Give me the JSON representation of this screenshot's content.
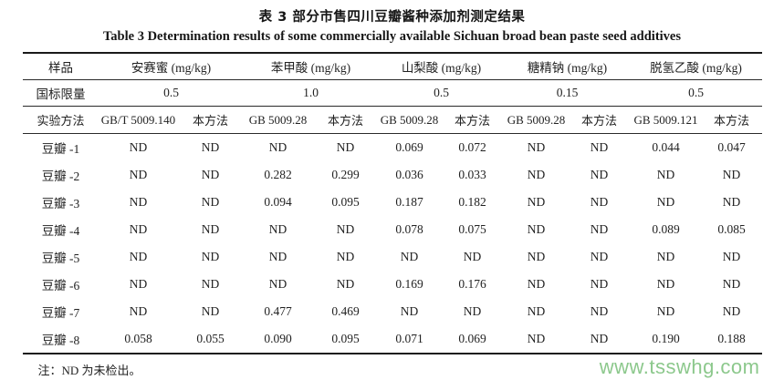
{
  "title_cn": "表 3  部分市售四川豆瓣酱种添加剂测定结果",
  "title_en": "Table 3  Determination results of some commercially available Sichuan broad bean paste seed additives",
  "table": {
    "col_sample": "样品",
    "row_limit_label": "国标限量",
    "row_method_label": "实验方法",
    "additives": [
      {
        "name": "安赛蜜 (mg/kg)",
        "limit": "0.5",
        "std_method": "GB/T 5009.140",
        "our_method": "本方法"
      },
      {
        "name": "苯甲酸 (mg/kg)",
        "limit": "1.0",
        "std_method": "GB 5009.28",
        "our_method": "本方法"
      },
      {
        "name": "山梨酸 (mg/kg)",
        "limit": "0.5",
        "std_method": "GB 5009.28",
        "our_method": "本方法"
      },
      {
        "name": "糖精钠 (mg/kg)",
        "limit": "0.15",
        "std_method": "GB 5009.28",
        "our_method": "本方法"
      },
      {
        "name": "脱氢乙酸 (mg/kg)",
        "limit": "0.5",
        "std_method": "GB 5009.121",
        "our_method": "本方法"
      }
    ],
    "rows": [
      {
        "sample": "豆瓣 -1",
        "values": [
          "ND",
          "ND",
          "ND",
          "ND",
          "0.069",
          "0.072",
          "ND",
          "ND",
          "0.044",
          "0.047"
        ]
      },
      {
        "sample": "豆瓣 -2",
        "values": [
          "ND",
          "ND",
          "0.282",
          "0.299",
          "0.036",
          "0.033",
          "ND",
          "ND",
          "ND",
          "ND"
        ]
      },
      {
        "sample": "豆瓣 -3",
        "values": [
          "ND",
          "ND",
          "0.094",
          "0.095",
          "0.187",
          "0.182",
          "ND",
          "ND",
          "ND",
          "ND"
        ]
      },
      {
        "sample": "豆瓣 -4",
        "values": [
          "ND",
          "ND",
          "ND",
          "ND",
          "0.078",
          "0.075",
          "ND",
          "ND",
          "0.089",
          "0.085"
        ]
      },
      {
        "sample": "豆瓣 -5",
        "values": [
          "ND",
          "ND",
          "ND",
          "ND",
          "ND",
          "ND",
          "ND",
          "ND",
          "ND",
          "ND"
        ]
      },
      {
        "sample": "豆瓣 -6",
        "values": [
          "ND",
          "ND",
          "ND",
          "ND",
          "0.169",
          "0.176",
          "ND",
          "ND",
          "ND",
          "ND"
        ]
      },
      {
        "sample": "豆瓣 -7",
        "values": [
          "ND",
          "ND",
          "0.477",
          "0.469",
          "ND",
          "ND",
          "ND",
          "ND",
          "ND",
          "ND"
        ]
      },
      {
        "sample": "豆瓣 -8",
        "values": [
          "0.058",
          "0.055",
          "0.090",
          "0.095",
          "0.071",
          "0.069",
          "ND",
          "ND",
          "0.190",
          "0.188"
        ]
      }
    ],
    "note": "注：ND 为未检出。"
  },
  "watermark": {
    "text": "www.tsswhg.com",
    "color": "#8cc88c"
  }
}
